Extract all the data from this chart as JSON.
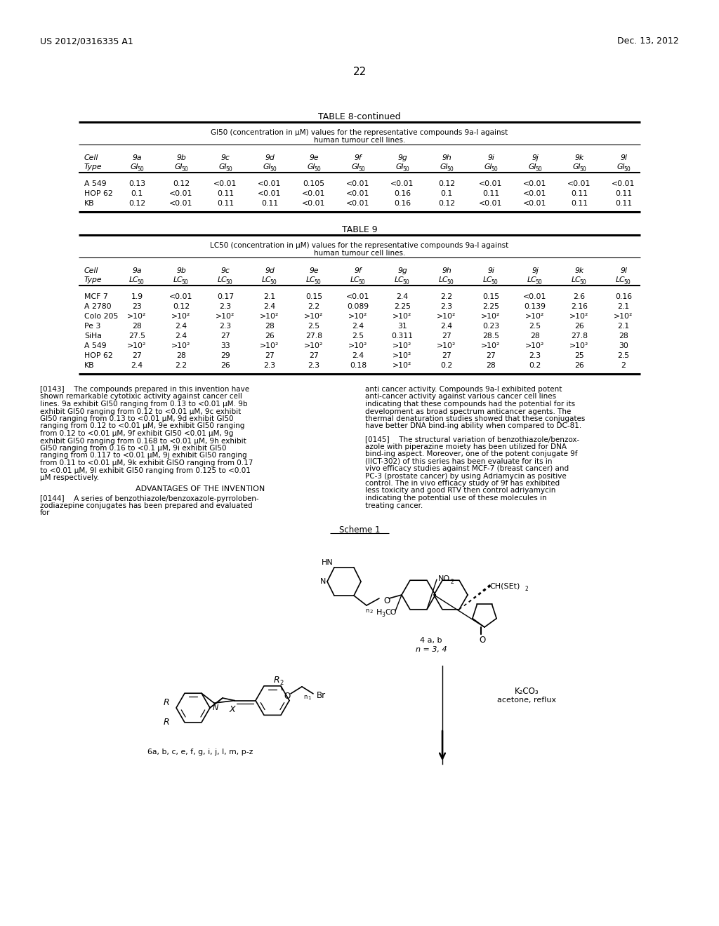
{
  "header_left": "US 2012/0316335 A1",
  "header_right": "Dec. 13, 2012",
  "page_number": "22",
  "table8_continued_title": "TABLE 8-continued",
  "table8_subtitle1": "GI50 (concentration in μM) values for the representative compounds 9a-l against",
  "table8_subtitle2": "human tumour cell lines.",
  "table8_col_headers": [
    "Cell",
    "9a",
    "9b",
    "9c",
    "9d",
    "9e",
    "9f",
    "9g",
    "9h",
    "9i",
    "9j",
    "9k",
    "9l"
  ],
  "table8_col_headers2": [
    "Type",
    "GI50",
    "GI50",
    "GI50",
    "GI50",
    "GI50",
    "GI50",
    "GI50",
    "GI50",
    "GI50",
    "GI50",
    "GI50",
    "GI50"
  ],
  "table8_rows": [
    [
      "A 549",
      "0.13",
      "0.12",
      "<0.01",
      "<0.01",
      "0.105",
      "<0.01",
      "<0.01",
      "0.12",
      "<0.01",
      "<0.01",
      "<0.01",
      "<0.01"
    ],
    [
      "HOP 62",
      "0.1",
      "<0.01",
      "0.11",
      "<0.01",
      "<0.01",
      "<0.01",
      "0.16",
      "0.1",
      "0.11",
      "<0.01",
      "0.11",
      "0.11"
    ],
    [
      "KB",
      "0.12",
      "<0.01",
      "0.11",
      "0.11",
      "<0.01",
      "<0.01",
      "0.16",
      "0.12",
      "<0.01",
      "<0.01",
      "0.11",
      "0.11"
    ]
  ],
  "table9_title": "TABLE 9",
  "table9_subtitle1": "LC50 (concentration in μM) values for the representative compounds 9a-l against",
  "table9_subtitle2": "human tumour cell lines.",
  "table9_col_headers": [
    "Cell",
    "9a",
    "9b",
    "9c",
    "9d",
    "9e",
    "9f",
    "9g",
    "9h",
    "9i",
    "9j",
    "9k",
    "9l"
  ],
  "table9_col_headers2": [
    "Type",
    "LC50",
    "LC50",
    "LC50",
    "LC50",
    "LC50",
    "LC50",
    "LC50",
    "LC50",
    "LC50",
    "LC50",
    "LC50",
    "LC50"
  ],
  "table9_rows": [
    [
      "MCF 7",
      "1.9",
      "<0.01",
      "0.17",
      "2.1",
      "0.15",
      "<0.01",
      "2.4",
      "2.2",
      "0.15",
      "<0.01",
      "2.6",
      "0.16"
    ],
    [
      "A 2780",
      "23",
      "0.12",
      "2.3",
      "2.4",
      "2.2",
      "0.089",
      "2.25",
      "2.3",
      "2.25",
      "0.139",
      "2.16",
      "2.1"
    ],
    [
      "Colo 205",
      ">10²",
      ">10²",
      ">10²",
      ">10²",
      ">10²",
      ">10²",
      ">10²",
      ">10²",
      ">10²",
      ">10²",
      ">10²",
      ">10²"
    ],
    [
      "Pe 3",
      "28",
      "2.4",
      "2.3",
      "28",
      "2.5",
      "2.4",
      "31",
      "2.4",
      "0.23",
      "2.5",
      "26",
      "2.1"
    ],
    [
      "SiHa",
      "27.5",
      "2.4",
      "27",
      "26",
      "27.8",
      "2.5",
      "0.311",
      "27",
      "28.5",
      "28",
      "27.8",
      "28"
    ],
    [
      "A 549",
      ">10²",
      ">10²",
      "33",
      ">10²",
      ">10²",
      ">10²",
      ">10²",
      ">10²",
      ">10²",
      ">10²",
      ">10²",
      "30"
    ],
    [
      "HOP 62",
      "27",
      "28",
      "29",
      "27",
      "27",
      "2.4",
      ">10²",
      "27",
      "27",
      "2.3",
      "25",
      "2.5"
    ],
    [
      "KB",
      "2.4",
      "2.2",
      "26",
      "2.3",
      "2.3",
      "0.18",
      ">10²",
      "0.2",
      "28",
      "0.2",
      "26",
      "2"
    ]
  ],
  "para143": "[0143]  The compounds prepared in this invention have shown remarkable cytotixic activity against cancer cell lines. 9a exhibit GI50 ranging from 0.13 to <0.01 μM. 9b exhibit GI50 ranging from 0.12 to <0.01 μM, 9c exhibit GI50 ranging from 0.13 to <0.01 μM, 9d exhibit GI50 ranging from 0.12 to <0.01 μM, 9e exhibit GI50 ranging from 0.12 to <0.01 μM, 9f exhibit GI50 <0.01 μM, 9g exhibit GI50 ranging from 0.168 to <0.01 μM, 9h exhibit GI50 ranging from 0.16 to <0.1 μM, 9i exhibit GI50 ranging from 0.117 to <0.01 μM, 9j exhibit GI50 ranging from 0.11 to <0.01 μM, 9k exhibit GISO ranging from 0.17 to <0.01 μM, 9l exhibit GI50 ranging from 0.125 to <0.01 μM respectively.",
  "para_right1": "anti cancer activity. Compounds 9a-l exhibited potent anti-cancer activity against various cancer cell lines indicating that these compounds had the potential for its development as broad spectrum anticancer agents. The thermal denaturation studies showed that these conjugates have better DNA bind-ing ability when compared to DC-81.",
  "advantages_title": "ADVANTAGES OF THE INVENTION",
  "para144": "[0144]  A series of benzothiazole/benzoxazole-pyrroloben-zodiazepine conjugates has been prepared and evaluated for",
  "para145": "[0145]  The structural variation of benzothiazole/benzox-azole with piperazine moiety has been utilized for DNA bind-ing aspect. Moreover, one of the potent conjugate 9f (IICT-302) of this series has been evaluate for its in vivo efficacy studies against MCF-7 (breast cancer) and PC-3 (prostate cancer) by using Adriamycin as positive control. The in vivo efficacy study of 9f has exhibited less toxicity and good RTV then control adriyamycin indicating the potential use of these molecules in treating cancer.",
  "scheme_label": "Scheme 1",
  "label_4ab": "4 a, b",
  "label_n34": "n = 3, 4",
  "label_6abc": "6a, b, c, e, f, g, i, j, l, m, p-z",
  "label_k2co3": "K₂CO₃",
  "label_acetone": "acetone, reflux",
  "bg_color": "#ffffff"
}
